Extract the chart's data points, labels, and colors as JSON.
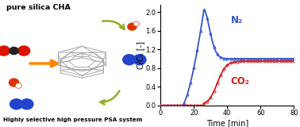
{
  "title_top": "pure silica CHA",
  "title_bottom": "Highly selective high pressure PSA system",
  "n2_color": "#3355cc",
  "co2_color": "#cc2222",
  "xlabel": "Time [min]",
  "ylabel": "C/C₀ [-]",
  "xlim": [
    0,
    80
  ],
  "ylim": [
    0,
    2.15
  ],
  "yticks": [
    0,
    0.4,
    0.8,
    1.2,
    1.6,
    2.0
  ],
  "xticks": [
    0,
    20,
    40,
    60,
    80
  ],
  "n2_label": "N₂",
  "co2_label": "CO₂",
  "n2_rise_start": 13,
  "n2_peak_x": 26,
  "n2_peak_y": 2.05,
  "n2_plateau_y": 1.0,
  "co2_rise_start": 26,
  "co2_peak_x": 33,
  "co2_plateau_y": 0.95,
  "cage_color": "#aaaaaa",
  "arrow_color": "#FF8800",
  "green_arrow_color": "#99aa22",
  "co2_mol_red": "#dd1100",
  "co2_mol_dark": "#222222",
  "water_red": "#dd3300",
  "water_white": "#ffffff",
  "n2_mol_blue": "#2244cc"
}
